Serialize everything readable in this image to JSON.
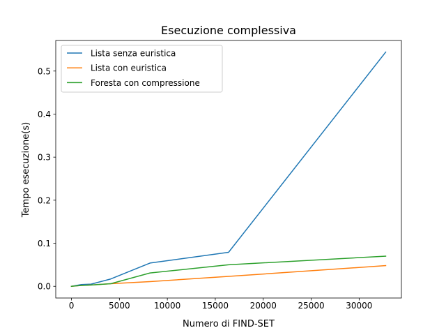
{
  "chart_data": {
    "type": "line",
    "title": "Esecuzione complessiva",
    "xlabel": "Numero di FIND-SET",
    "ylabel": "Tempo esecuzione(s)",
    "xlim": [
      -1637,
      34406
    ],
    "ylim": [
      -0.0272,
      0.571
    ],
    "xticks": [
      0,
      5000,
      10000,
      15000,
      20000,
      25000,
      30000
    ],
    "xtick_labels": [
      "0",
      "5000",
      "10000",
      "15000",
      "20000",
      "25000",
      "30000"
    ],
    "yticks": [
      0.0,
      0.1,
      0.2,
      0.3,
      0.4,
      0.5
    ],
    "ytick_labels": [
      "0.0",
      "0.1",
      "0.2",
      "0.3",
      "0.4",
      "0.5"
    ],
    "grid": false,
    "legend_position": "upper-left",
    "x": [
      0,
      1024,
      2048,
      4096,
      8192,
      16384,
      32768
    ],
    "series": [
      {
        "name": "Lista senza euristica",
        "color": "#1f77b4",
        "values": [
          0.0,
          0.004,
          0.005,
          0.017,
          0.054,
          0.079,
          0.544
        ]
      },
      {
        "name": "Lista con euristica",
        "color": "#ff7f0e",
        "values": [
          0.0,
          0.002,
          0.003,
          0.006,
          0.011,
          0.023,
          0.048
        ]
      },
      {
        "name": "Foresta con compressione",
        "color": "#2ca02c",
        "values": [
          0.0,
          0.002,
          0.003,
          0.006,
          0.031,
          0.05,
          0.07
        ]
      }
    ]
  }
}
